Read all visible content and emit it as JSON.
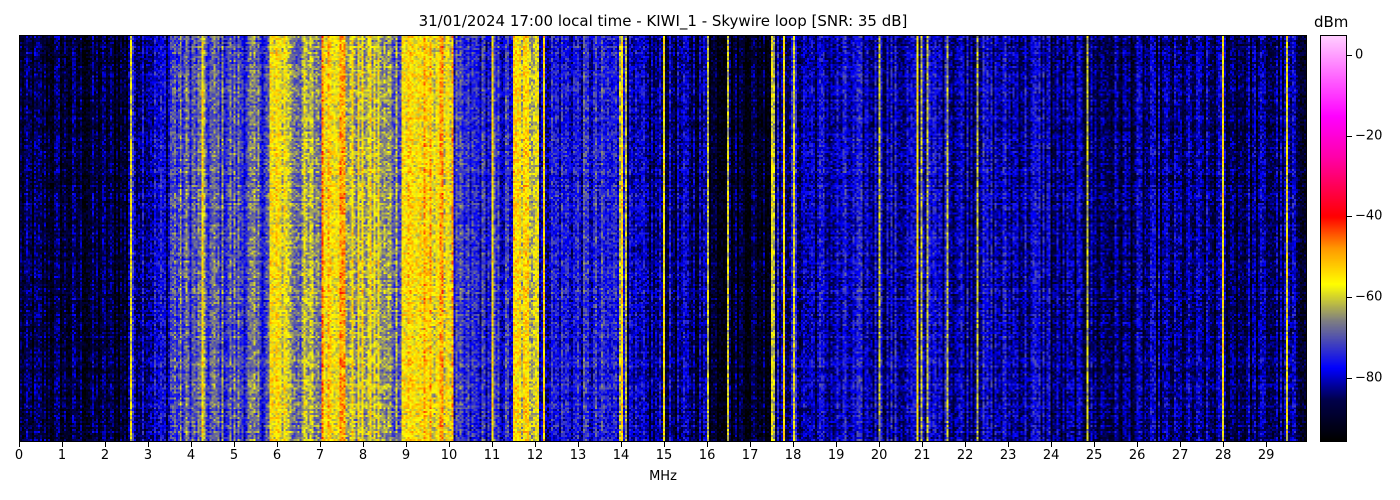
{
  "chart_data": {
    "type": "heatmap",
    "title": "31/01/2024 17:00 local time - KIWI_1 - Skywire loop [SNR: 35 dB]",
    "xlabel": "MHz",
    "xlim": [
      0,
      29.95
    ],
    "x_ticks": [
      0,
      1,
      2,
      3,
      4,
      5,
      6,
      7,
      8,
      9,
      10,
      11,
      12,
      13,
      14,
      15,
      16,
      17,
      18,
      19,
      20,
      21,
      22,
      23,
      24,
      25,
      26,
      27,
      28,
      29
    ],
    "colorbar": {
      "label": "dBm",
      "range": [
        -96,
        5
      ],
      "ticks": [
        0,
        -20,
        -40,
        -60,
        -80
      ],
      "colormap": [
        {
          "value": -96,
          "color": "#000000"
        },
        {
          "value": -86,
          "color": "#00004a"
        },
        {
          "value": -78,
          "color": "#0000ff"
        },
        {
          "value": -66,
          "color": "#808080"
        },
        {
          "value": -57,
          "color": "#ffff00"
        },
        {
          "value": -48,
          "color": "#ff9900"
        },
        {
          "value": -40,
          "color": "#ff0000"
        },
        {
          "value": -25,
          "color": "#ff00aa"
        },
        {
          "value": -15,
          "color": "#ff00ff"
        },
        {
          "value": 5,
          "color": "#ffccff"
        }
      ]
    },
    "band_levels_dbm": [
      {
        "from": 0,
        "to": 2.5,
        "level": -89
      },
      {
        "from": 2.5,
        "to": 3.5,
        "level": -80
      },
      {
        "from": 3.5,
        "to": 5.8,
        "level": -71
      },
      {
        "from": 5.8,
        "to": 6.3,
        "level": -58
      },
      {
        "from": 6.3,
        "to": 7.0,
        "level": -65
      },
      {
        "from": 7.0,
        "to": 7.6,
        "level": -52
      },
      {
        "from": 7.6,
        "to": 8.4,
        "level": -61
      },
      {
        "from": 8.4,
        "to": 8.9,
        "level": -66
      },
      {
        "from": 8.9,
        "to": 10.1,
        "level": -55
      },
      {
        "from": 10.1,
        "to": 11.5,
        "level": -76
      },
      {
        "from": 11.5,
        "to": 12.1,
        "level": -58
      },
      {
        "from": 12.1,
        "to": 14.1,
        "level": -77
      },
      {
        "from": 14.1,
        "to": 16.0,
        "level": -84
      },
      {
        "from": 16.0,
        "to": 17.5,
        "level": -90
      },
      {
        "from": 17.5,
        "to": 24.0,
        "level": -81
      },
      {
        "from": 24.0,
        "to": 29.95,
        "level": -85
      }
    ],
    "carriers_mhz": [
      2.57,
      4.25,
      6.0,
      9.4,
      11.0,
      12.0,
      12.2,
      14.0,
      14.1,
      15.0,
      16.0,
      16.5,
      17.5,
      17.55,
      17.8,
      18.0,
      20.0,
      20.9,
      21.0,
      21.15,
      21.6,
      22.3,
      24.85,
      28.0,
      29.5
    ]
  }
}
